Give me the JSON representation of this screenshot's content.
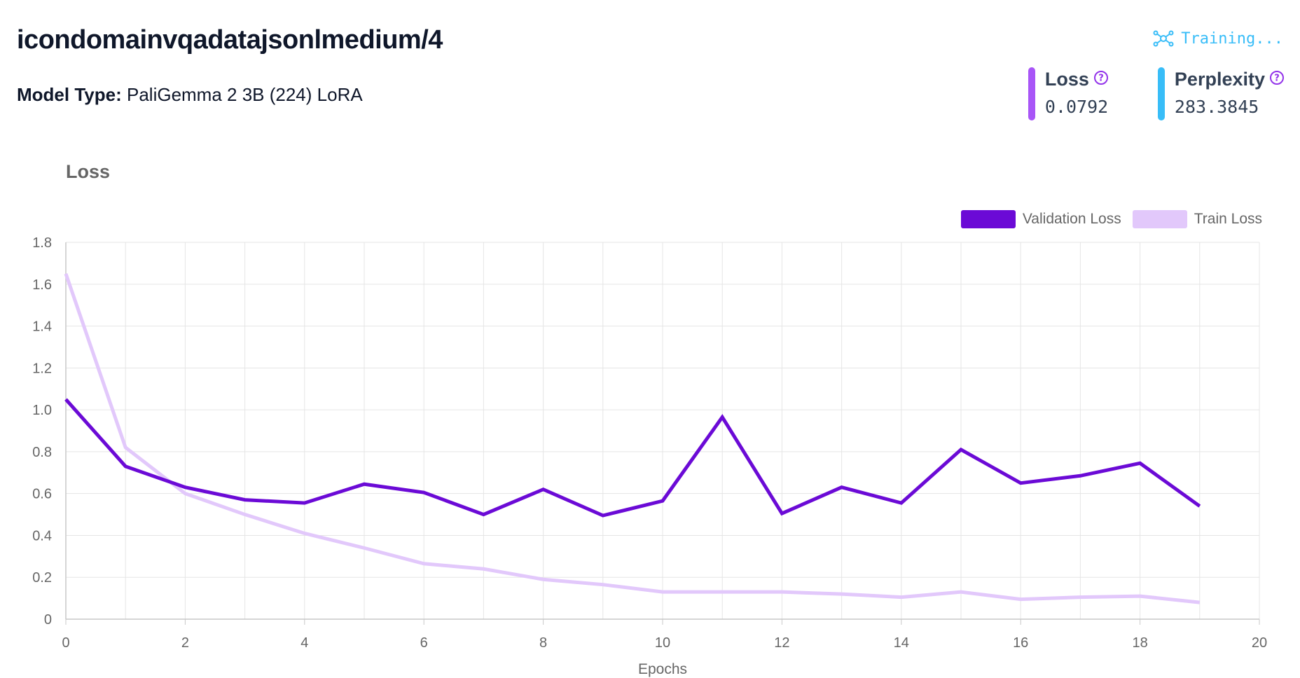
{
  "header": {
    "title": "icondomainvqadatajsonlmedium/4",
    "model_type_label": "Model Type:",
    "model_type_value": "PaliGemma 2 3B (224) LoRA",
    "status_text": "Training...",
    "status_icon": "network-nodes-icon",
    "status_color": "#38bdf8"
  },
  "metrics": [
    {
      "label": "Loss",
      "value": "0.0792",
      "color": "#a855f7",
      "icon": "question-circle-icon"
    },
    {
      "label": "Perplexity",
      "value": "283.3845",
      "color": "#38bdf8",
      "icon": "question-circle-icon"
    }
  ],
  "chart_data": {
    "type": "line",
    "title": "Loss",
    "xlabel": "Epochs",
    "ylabel": "",
    "xlim": [
      0,
      20
    ],
    "ylim": [
      0,
      1.8
    ],
    "xticks": [
      0,
      2,
      4,
      6,
      8,
      10,
      12,
      14,
      16,
      18,
      20
    ],
    "yticks": [
      0,
      0.2,
      0.4,
      0.6,
      0.8,
      1.0,
      1.2,
      1.4,
      1.6,
      1.8
    ],
    "ytick_labels": [
      "0",
      "0.2",
      "0.4",
      "0.6",
      "0.8",
      "1.0",
      "1.2",
      "1.4",
      "1.6",
      "1.8"
    ],
    "grid": true,
    "legend_position": "top-right",
    "x": [
      0,
      1,
      2,
      3,
      4,
      5,
      6,
      7,
      8,
      9,
      10,
      11,
      12,
      13,
      14,
      15,
      16,
      17,
      18,
      19
    ],
    "series": [
      {
        "name": "Validation Loss",
        "color": "#6b0ad6",
        "values": [
          1.05,
          0.73,
          0.63,
          0.57,
          0.555,
          0.645,
          0.605,
          0.5,
          0.62,
          0.495,
          0.565,
          0.965,
          0.505,
          0.63,
          0.555,
          0.81,
          0.65,
          0.685,
          0.745,
          0.54
        ]
      },
      {
        "name": "Train Loss",
        "color": "#e2c8fb",
        "values": [
          1.65,
          0.82,
          0.6,
          0.5,
          0.41,
          0.34,
          0.265,
          0.24,
          0.19,
          0.165,
          0.13,
          0.13,
          0.13,
          0.12,
          0.105,
          0.13,
          0.095,
          0.105,
          0.11,
          0.08
        ]
      }
    ]
  }
}
